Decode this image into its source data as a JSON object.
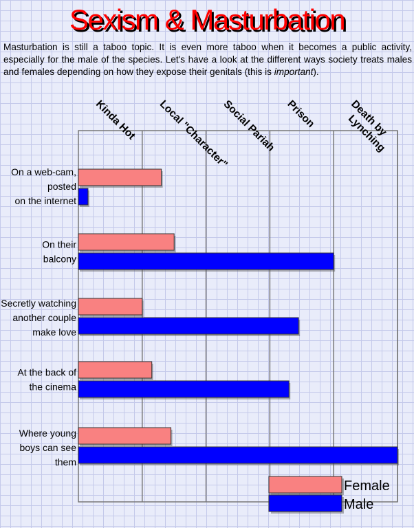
{
  "title": "Sexism & Masturbation",
  "intro": {
    "text": "Masturbation is still a taboo topic.  It is even more taboo when it becomes a public activity, especially for the male of the species.  Let's have a look at the different ways society treats males and females depending on how they expose their genitals (this is ",
    "emphasis": "important",
    "end": ")."
  },
  "chart_data": {
    "type": "bar",
    "orientation": "horizontal",
    "categories": [
      "On a web-cam, posted on the internet",
      "On their balcony",
      "Secretly watching another couple make love",
      "At the back of the cinema",
      "Where young boys can see them"
    ],
    "category_lines": [
      [
        "On a web-cam,",
        "posted",
        "on the internet"
      ],
      [
        "On their",
        "balcony"
      ],
      [
        "Secretly watching",
        "another couple",
        "make love"
      ],
      [
        "At the back of",
        "the cinema"
      ],
      [
        "Where young",
        "boys can see",
        "them"
      ]
    ],
    "scale_labels": [
      "Kinda Hot",
      "Local \"Character\"",
      "Social Pariah",
      "Prison",
      "Death by Lynching"
    ],
    "scale_label_lines": [
      [
        "Kinda Hot"
      ],
      [
        "Local \"Character\""
      ],
      [
        "Social Pariah"
      ],
      [
        "Prison"
      ],
      [
        "Death by",
        "Lynching"
      ]
    ],
    "xlim": [
      0,
      5
    ],
    "series": [
      {
        "name": "Female",
        "color": "#f98181",
        "values": [
          1.3,
          1.5,
          1.0,
          1.15,
          1.45
        ]
      },
      {
        "name": "Male",
        "color": "#0000ff",
        "values": [
          0.15,
          4.0,
          3.45,
          3.3,
          5.0
        ]
      }
    ],
    "grid": true,
    "legend": "bottom-right"
  }
}
